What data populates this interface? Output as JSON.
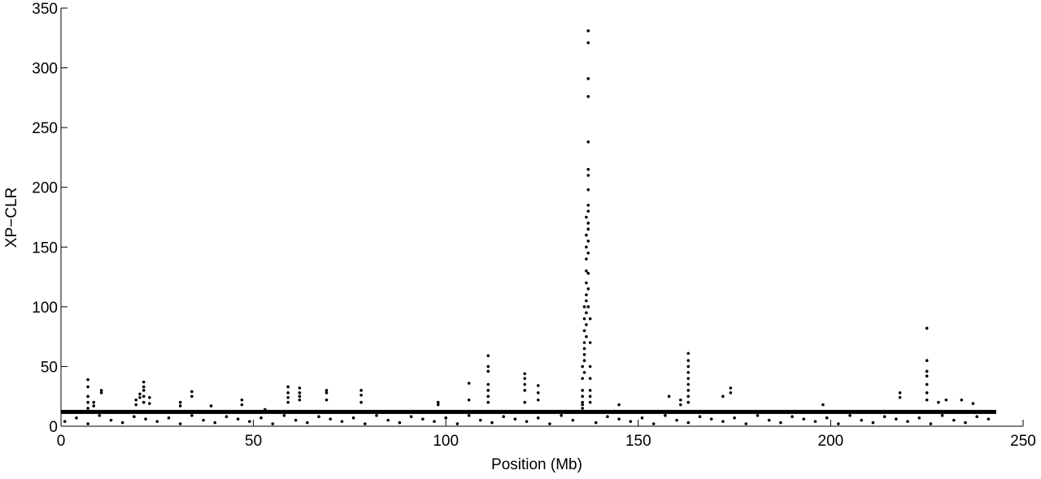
{
  "chart_data": {
    "type": "scatter",
    "xlabel": "Position (Mb)",
    "ylabel": "XP−CLR",
    "xlim": [
      0,
      250
    ],
    "ylim": [
      0,
      350
    ],
    "xticks": [
      0,
      50,
      100,
      150,
      200,
      250
    ],
    "yticks": [
      0,
      50,
      100,
      150,
      200,
      250,
      300,
      350
    ],
    "color": "#000000",
    "threshold": 12,
    "threshold_end": 243,
    "x": [
      1,
      4,
      7,
      10,
      13,
      16,
      19,
      22,
      25,
      28,
      31,
      34,
      37,
      40,
      43,
      46,
      49,
      52,
      55,
      58,
      61,
      64,
      67,
      70,
      73,
      76,
      79,
      82,
      85,
      88,
      91,
      94,
      97,
      100,
      103,
      106,
      109,
      112,
      115,
      118,
      121,
      124,
      127,
      130,
      133,
      139,
      142,
      145,
      148,
      151,
      154,
      157,
      160,
      163,
      166,
      169,
      172,
      175,
      178,
      181,
      184,
      187,
      190,
      193,
      196,
      199,
      202,
      205,
      208,
      211,
      214,
      217,
      220,
      223,
      226,
      229,
      232,
      235,
      238,
      241,
      7,
      7,
      7,
      7,
      7,
      8.5,
      8.5,
      10.5,
      10.5,
      19.5,
      19.5,
      20.5,
      20.5,
      21.5,
      21.5,
      21.5,
      21.5,
      21.5,
      23,
      23,
      31,
      31,
      34,
      34,
      39,
      47,
      47,
      53,
      59,
      59,
      59,
      59,
      62,
      62,
      62,
      62,
      69,
      69,
      69,
      78,
      78,
      78,
      98,
      98,
      106,
      106,
      111,
      111,
      111,
      111,
      111,
      111,
      111,
      120.5,
      120.5,
      120.5,
      120.5,
      120.5,
      124,
      124,
      124,
      135.5,
      135.5,
      135.5,
      135.5,
      135.5,
      135.5,
      135.5,
      136,
      136,
      136,
      136,
      136,
      136,
      136,
      136,
      136.5,
      136.5,
      136.5,
      136.5,
      136.5,
      136.5,
      136.5,
      136.5,
      136.5,
      136.5,
      136.5,
      137,
      137,
      137,
      137,
      137,
      137,
      137,
      137,
      137,
      137,
      137,
      137,
      137,
      137,
      137,
      137,
      137,
      137.5,
      137.5,
      137.5,
      137.5,
      137.5,
      137.5,
      137.5,
      145,
      158,
      161,
      161,
      163,
      163,
      163,
      163,
      163,
      163,
      163,
      163,
      163,
      172,
      174,
      174,
      198,
      218,
      218,
      225,
      225,
      225,
      225,
      225,
      225,
      225,
      228,
      230,
      234,
      237
    ],
    "values": [
      4,
      7,
      2,
      9,
      5,
      3,
      8,
      6,
      4,
      7,
      2,
      9,
      5,
      3,
      8,
      6,
      4,
      7,
      2,
      9,
      5,
      3,
      8,
      6,
      4,
      7,
      2,
      9,
      5,
      3,
      8,
      6,
      4,
      7,
      2,
      9,
      5,
      3,
      8,
      6,
      4,
      7,
      2,
      9,
      5,
      3,
      8,
      6,
      4,
      7,
      2,
      9,
      5,
      3,
      8,
      6,
      4,
      7,
      2,
      9,
      5,
      3,
      8,
      6,
      4,
      7,
      2,
      9,
      5,
      3,
      8,
      6,
      4,
      7,
      2,
      9,
      5,
      3,
      8,
      6,
      39,
      33,
      25,
      20,
      15,
      20,
      17,
      30,
      28,
      22,
      18,
      27,
      24,
      37,
      33,
      30,
      25,
      20,
      24,
      19,
      20,
      17,
      29,
      25,
      17,
      22,
      18,
      14,
      33,
      28,
      24,
      20,
      32,
      28,
      25,
      22,
      30,
      28,
      22,
      30,
      26,
      20,
      20,
      18,
      36,
      22,
      59,
      50,
      46,
      35,
      30,
      25,
      20,
      44,
      40,
      35,
      30,
      20,
      34,
      28,
      22,
      50,
      40,
      30,
      25,
      20,
      18,
      15,
      100,
      90,
      80,
      70,
      65,
      60,
      55,
      45,
      175,
      160,
      150,
      140,
      130,
      120,
      110,
      105,
      95,
      85,
      75,
      331,
      321,
      291,
      276,
      238,
      215,
      210,
      198,
      185,
      180,
      170,
      165,
      155,
      145,
      128,
      115,
      100,
      90,
      70,
      50,
      40,
      30,
      25,
      20,
      18,
      25,
      22,
      18,
      61,
      55,
      50,
      45,
      40,
      35,
      30,
      25,
      20,
      25,
      32,
      28,
      18,
      28,
      24,
      82,
      55,
      46,
      42,
      35,
      28,
      22,
      20,
      22,
      22,
      19
    ]
  }
}
